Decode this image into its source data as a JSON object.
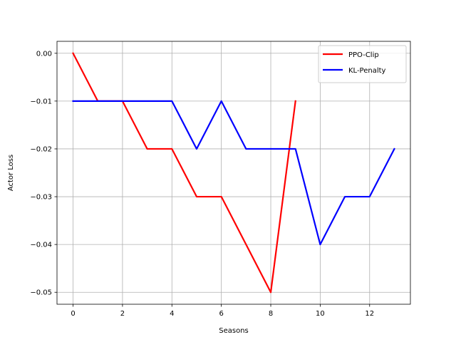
{
  "chart_data": {
    "type": "line",
    "title": "",
    "xlabel": "Seasons",
    "ylabel": "Actor Loss",
    "xlim": [
      -0.65,
      13.65
    ],
    "ylim": [
      -0.0525,
      0.0025
    ],
    "xticks": [
      0,
      2,
      4,
      6,
      8,
      10,
      12
    ],
    "xtick_labels": [
      "0",
      "2",
      "4",
      "6",
      "8",
      "10",
      "12"
    ],
    "yticks": [
      0.0,
      -0.01,
      -0.02,
      -0.03,
      -0.04,
      -0.05
    ],
    "ytick_labels": [
      "0.00",
      "−0.01",
      "−0.02",
      "−0.03",
      "−0.04",
      "−0.05"
    ],
    "grid": true,
    "legend_position": "top-right",
    "series": [
      {
        "name": "PPO-Clip",
        "color": "#ff0000",
        "x": [
          0,
          1,
          2,
          3,
          4,
          5,
          6,
          7,
          8,
          9
        ],
        "y": [
          0.0,
          -0.01,
          -0.01,
          -0.02,
          -0.02,
          -0.03,
          -0.03,
          -0.04,
          -0.05,
          -0.01
        ]
      },
      {
        "name": "KL-Penalty",
        "color": "#0000ff",
        "x": [
          0,
          1,
          2,
          3,
          4,
          5,
          6,
          7,
          8,
          9,
          10,
          11,
          12,
          13
        ],
        "y": [
          -0.01,
          -0.01,
          -0.01,
          -0.01,
          -0.01,
          -0.02,
          -0.01,
          -0.02,
          -0.02,
          -0.02,
          -0.04,
          -0.03,
          -0.03,
          -0.02
        ]
      }
    ]
  }
}
